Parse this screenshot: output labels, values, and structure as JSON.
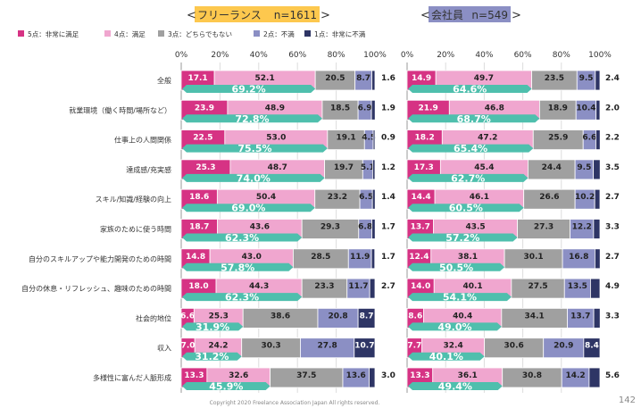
{
  "groups": [
    {
      "label": "フリーランス",
      "n_label": "n=1611"
    },
    {
      "label": "会社員",
      "n_label": "n=549"
    }
  ],
  "legend": [
    {
      "label": "5点：非常に満足",
      "color": "#d63384"
    },
    {
      "label": "4点：満足",
      "color": "#f0a6cf"
    },
    {
      "label": "3点：どちらでもない",
      "color": "#a0a0a0"
    },
    {
      "label": "2点：不満",
      "color": "#8b8fc4"
    },
    {
      "label": "1点：非常に不満",
      "color": "#2e3565"
    }
  ],
  "axis_ticks": [
    "0%",
    "20%",
    "40%",
    "60%",
    "80%",
    "100%"
  ],
  "colors": {
    "arrow": "#4fbfad",
    "group_freelance_bg": "#fdc84e",
    "group_employee_bg": "#8b8fc4"
  },
  "chart_data": {
    "type": "bar",
    "stacked": true,
    "orientation": "horizontal",
    "xlim": [
      0,
      100
    ],
    "categories": [
      "全般",
      "就業環境（働く時間/場所など）",
      "仕事上の人間関係",
      "達成感/充実感",
      "スキル/知識/経験の向上",
      "家族のために使う時間",
      "自分のスキルアップや能力開発のための時間",
      "自分の休息・リフレッシュ、趣味のための時間",
      "社会的地位",
      "収入",
      "多様性に富んだ人脈形成"
    ],
    "panels": [
      {
        "name": "フリーランス n=1611",
        "series": [
          {
            "name": "5点：非常に満足",
            "values": [
              17.1,
              23.9,
              22.5,
              25.3,
              18.6,
              18.7,
              14.8,
              18.0,
              6.6,
              7.0,
              13.3
            ]
          },
          {
            "name": "4点：満足",
            "values": [
              52.1,
              48.9,
              53.0,
              48.7,
              50.4,
              43.6,
              43.0,
              44.3,
              25.3,
              24.2,
              32.6
            ]
          },
          {
            "name": "3点：どちらでもない",
            "values": [
              20.5,
              18.5,
              19.1,
              19.7,
              23.2,
              29.3,
              28.5,
              23.3,
              38.6,
              30.3,
              37.5
            ]
          },
          {
            "name": "2点：不満",
            "values": [
              8.7,
              6.9,
              4.5,
              5.1,
              6.5,
              6.8,
              11.9,
              11.7,
              20.8,
              27.8,
              13.6
            ]
          },
          {
            "name": "1点：非常に不満",
            "values": [
              1.6,
              1.9,
              0.9,
              1.2,
              1.4,
              1.7,
              1.7,
              2.7,
              8.7,
              10.7,
              3.0
            ]
          }
        ],
        "satisfied_total": [
          69.2,
          72.8,
          75.5,
          74.0,
          69.0,
          62.3,
          57.8,
          62.3,
          31.9,
          31.2,
          45.9
        ]
      },
      {
        "name": "会社員 n=549",
        "series": [
          {
            "name": "5点：非常に満足",
            "values": [
              14.9,
              21.9,
              18.2,
              17.3,
              14.4,
              13.7,
              12.4,
              14.0,
              8.6,
              7.7,
              13.3
            ]
          },
          {
            "name": "4点：満足",
            "values": [
              49.7,
              46.8,
              47.2,
              45.4,
              46.1,
              43.5,
              38.1,
              40.1,
              40.4,
              32.4,
              36.1
            ]
          },
          {
            "name": "3点：どちらでもない",
            "values": [
              23.5,
              18.9,
              25.9,
              24.4,
              26.6,
              27.3,
              30.1,
              27.5,
              34.1,
              30.6,
              30.8
            ]
          },
          {
            "name": "2点：不満",
            "values": [
              9.5,
              10.4,
              6.6,
              9.5,
              10.2,
              12.2,
              16.8,
              13.5,
              13.7,
              20.9,
              14.2
            ]
          },
          {
            "name": "1点：非常に不満",
            "values": [
              2.4,
              2.0,
              2.2,
              3.5,
              2.7,
              3.3,
              2.7,
              4.9,
              3.3,
              8.4,
              5.6
            ]
          }
        ],
        "satisfied_total": [
          64.6,
          68.7,
          65.4,
          62.7,
          60.5,
          57.2,
          50.5,
          54.1,
          49.0,
          40.1,
          49.4
        ]
      }
    ]
  },
  "footer": {
    "copyright": "Copyright 2020 Freelance Association Japan  All rights reserved.",
    "page_number": "142"
  }
}
